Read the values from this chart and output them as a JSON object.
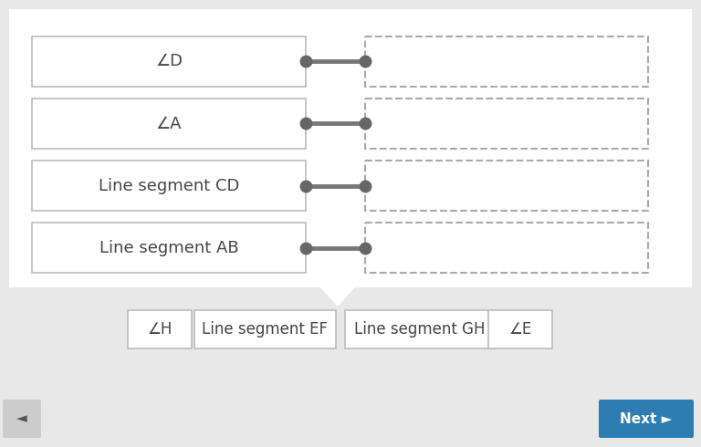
{
  "bg_color": "#e8e8e8",
  "upper_bg_color": "#ffffff",
  "left_boxes": [
    {
      "label": "∠D"
    },
    {
      "label": "∠A"
    },
    {
      "label": "Line segment CD"
    },
    {
      "label": "Line segment AB"
    }
  ],
  "bottom_boxes": [
    {
      "label": "∠H"
    },
    {
      "label": "Line segment EF"
    },
    {
      "label": "Line segment GH"
    },
    {
      "label": "∠E"
    }
  ],
  "connector_color": "#777777",
  "dot_color": "#666666",
  "solid_edge_color": "#bbbbbb",
  "dashed_edge_color": "#aaaaaa",
  "text_color": "#444444",
  "next_btn_color": "#2e7db2",
  "next_btn_text": "Next ►",
  "back_btn_text": "◄"
}
